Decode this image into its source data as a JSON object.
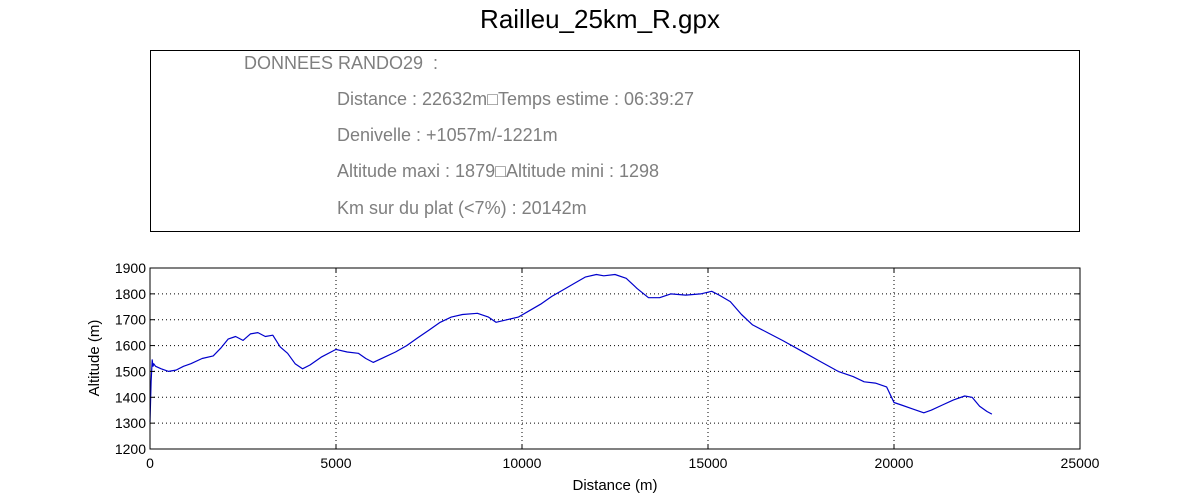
{
  "title": "Railleu_25km_R.gpx",
  "info": {
    "header": "DONNEES RANDO29  :",
    "line1": "Distance : 22632m□Temps estime : 06:39:27",
    "line2": "Denivelle : +1057m/-1221m",
    "line3": "Altitude maxi : 1879□Altitude mini : 1298",
    "line4": "Km sur du plat (<7%) : 20142m"
  },
  "chart_data": {
    "type": "line",
    "xlabel": "Distance (m)",
    "ylabel": "Altitude (m)",
    "xlim": [
      0,
      25000
    ],
    "ylim": [
      1200,
      1900
    ],
    "xticks": [
      0,
      5000,
      10000,
      15000,
      20000,
      25000
    ],
    "yticks": [
      1200,
      1300,
      1400,
      1500,
      1600,
      1700,
      1800,
      1900
    ],
    "grid": true,
    "series": [
      {
        "color": "#0000cc",
        "x": [
          0,
          30,
          60,
          80,
          100,
          150,
          300,
          500,
          700,
          900,
          1100,
          1400,
          1700,
          1900,
          2100,
          2300,
          2500,
          2700,
          2900,
          3100,
          3300,
          3500,
          3700,
          3900,
          4100,
          4300,
          4600,
          5000,
          5300,
          5600,
          5800,
          6000,
          6300,
          6600,
          6900,
          7200,
          7500,
          7800,
          8100,
          8400,
          8800,
          9100,
          9300,
          9600,
          9900,
          10200,
          10500,
          10800,
          11100,
          11400,
          11700,
          12000,
          12200,
          12500,
          12800,
          13100,
          13400,
          13700,
          14000,
          14400,
          14800,
          15100,
          15300,
          15600,
          15900,
          16200,
          16600,
          17000,
          17500,
          18000,
          18500,
          18900,
          19200,
          19500,
          19800,
          20000,
          20200,
          20500,
          20800,
          21000,
          21300,
          21600,
          21900,
          22100,
          22300,
          22500,
          22632
        ],
        "y": [
          1305,
          1460,
          1545,
          1520,
          1530,
          1520,
          1510,
          1500,
          1505,
          1520,
          1530,
          1550,
          1560,
          1590,
          1625,
          1635,
          1620,
          1645,
          1650,
          1635,
          1640,
          1595,
          1570,
          1530,
          1510,
          1525,
          1555,
          1585,
          1575,
          1570,
          1550,
          1535,
          1555,
          1575,
          1600,
          1630,
          1660,
          1690,
          1710,
          1720,
          1725,
          1710,
          1690,
          1700,
          1710,
          1735,
          1760,
          1790,
          1815,
          1840,
          1865,
          1875,
          1870,
          1875,
          1860,
          1820,
          1785,
          1785,
          1800,
          1795,
          1800,
          1810,
          1795,
          1770,
          1720,
          1680,
          1650,
          1620,
          1580,
          1540,
          1500,
          1480,
          1460,
          1455,
          1440,
          1380,
          1370,
          1355,
          1340,
          1350,
          1370,
          1390,
          1405,
          1400,
          1365,
          1345,
          1335
        ]
      }
    ]
  }
}
